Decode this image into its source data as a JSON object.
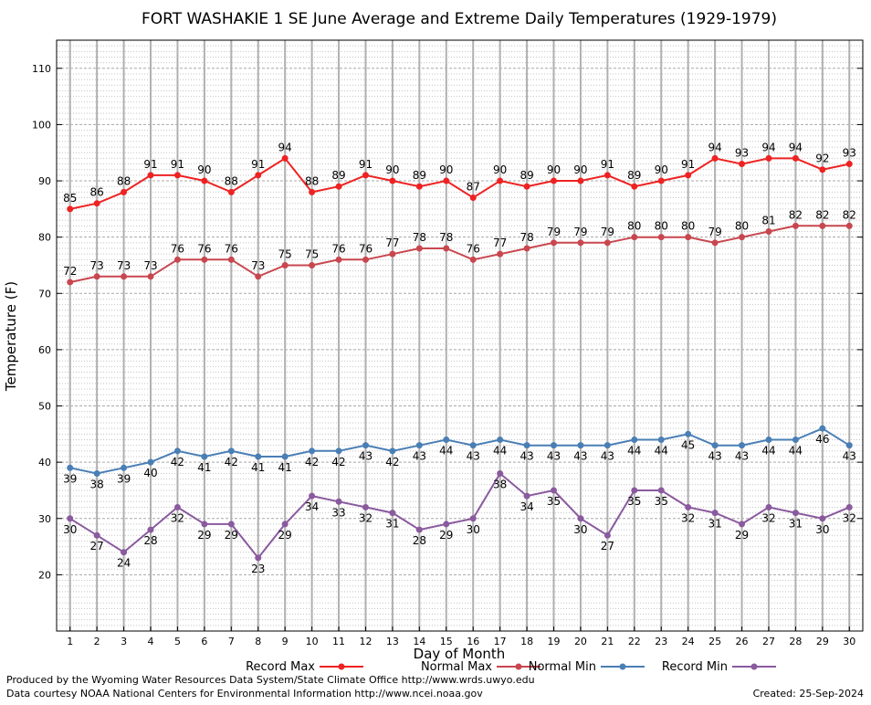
{
  "chart_data": {
    "type": "line",
    "title": "FORT WASHAKIE 1 SE June Average and Extreme Daily Temperatures (1929-1979)",
    "xlabel": "Day of Month",
    "ylabel": "Temperature (F)",
    "x": [
      1,
      2,
      3,
      4,
      5,
      6,
      7,
      8,
      9,
      10,
      11,
      12,
      13,
      14,
      15,
      16,
      17,
      18,
      19,
      20,
      21,
      22,
      23,
      24,
      25,
      26,
      27,
      28,
      29,
      30
    ],
    "xlim": [
      0.5,
      30.5
    ],
    "ylim": [
      10,
      115
    ],
    "yticks": [
      20,
      30,
      40,
      50,
      60,
      70,
      80,
      90,
      100,
      110
    ],
    "grid": true,
    "legend_position": "bottom",
    "series": [
      {
        "name": "Record Max",
        "color": "#ee2222",
        "label_position": "above",
        "values": [
          85,
          86,
          88,
          91,
          91,
          90,
          88,
          91,
          94,
          88,
          89,
          91,
          90,
          89,
          90,
          87,
          90,
          89,
          90,
          90,
          91,
          89,
          90,
          91,
          94,
          93,
          94,
          94,
          92,
          93
        ]
      },
      {
        "name": "Normal Max",
        "color": "#c8474f",
        "label_position": "above",
        "values": [
          72,
          73,
          73,
          73,
          76,
          76,
          76,
          73,
          75,
          75,
          76,
          76,
          77,
          78,
          78,
          76,
          77,
          78,
          79,
          79,
          79,
          80,
          80,
          80,
          79,
          80,
          81,
          82,
          82,
          82
        ]
      },
      {
        "name": "Normal Min",
        "color": "#4a7fb5",
        "label_position": "below",
        "values": [
          39,
          38,
          39,
          40,
          42,
          41,
          42,
          41,
          41,
          42,
          42,
          43,
          42,
          43,
          44,
          43,
          44,
          43,
          43,
          43,
          43,
          44,
          44,
          45,
          43,
          43,
          44,
          44,
          46,
          43
        ]
      },
      {
        "name": "Record Min",
        "color": "#8a5a9e",
        "label_position": "below",
        "values": [
          30,
          27,
          24,
          28,
          32,
          29,
          29,
          23,
          29,
          34,
          33,
          32,
          31,
          28,
          29,
          30,
          38,
          34,
          35,
          30,
          27,
          35,
          35,
          32,
          31,
          29,
          32,
          31,
          30,
          32
        ]
      }
    ]
  },
  "footer": {
    "line1": "Produced by the Wyoming Water Resources Data System/State Climate Office http://www.wrds.uwyo.edu",
    "line2": "Data courtesy NOAA National Centers for Environmental Information http://www.ncei.noaa.gov",
    "created": "Created:  25-Sep-2024"
  }
}
